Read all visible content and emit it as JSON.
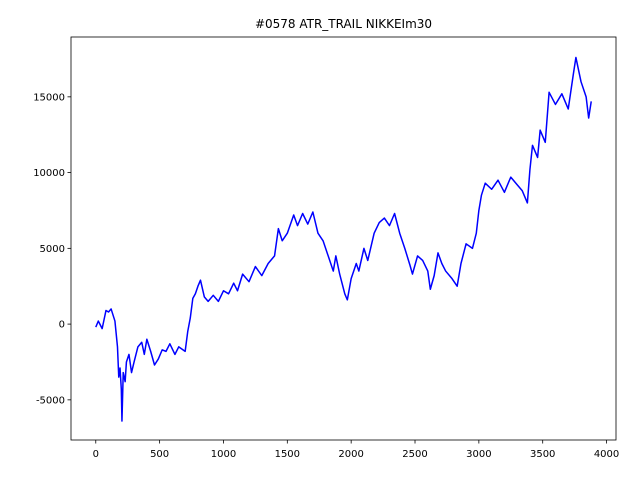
{
  "chart_data": {
    "type": "line",
    "title": "#0578 ATR_TRAIL NIKKEIm30",
    "x": [
      0,
      20,
      50,
      70,
      80,
      100,
      120,
      150,
      170,
      180,
      190,
      200,
      205,
      215,
      230,
      240,
      260,
      280,
      300,
      330,
      360,
      380,
      400,
      430,
      460,
      490,
      520,
      550,
      580,
      620,
      650,
      700,
      720,
      740,
      760,
      780,
      800,
      820,
      850,
      880,
      920,
      960,
      1000,
      1040,
      1080,
      1110,
      1150,
      1200,
      1250,
      1300,
      1350,
      1400,
      1430,
      1460,
      1500,
      1550,
      1580,
      1620,
      1660,
      1700,
      1740,
      1780,
      1820,
      1860,
      1880,
      1910,
      1950,
      1970,
      2000,
      2040,
      2060,
      2100,
      2130,
      2180,
      2220,
      2260,
      2300,
      2340,
      2380,
      2420,
      2460,
      2480,
      2520,
      2560,
      2600,
      2620,
      2650,
      2680,
      2710,
      2740,
      2790,
      2830,
      2860,
      2900,
      2950,
      2980,
      3000,
      3020,
      3050,
      3100,
      3150,
      3200,
      3250,
      3300,
      3340,
      3380,
      3400,
      3420,
      3460,
      3480,
      3520,
      3550,
      3600,
      3650,
      3700,
      3740,
      3760,
      3800,
      3840,
      3860,
      3880
    ],
    "series": [
      {
        "color": "#0000ff",
        "values": [
          -200,
          200,
          -300,
          500,
          900,
          800,
          1000,
          200,
          -1500,
          -3500,
          -2900,
          -4300,
          -6400,
          -3200,
          -3800,
          -2500,
          -2000,
          -3200,
          -2500,
          -1500,
          -1200,
          -2000,
          -1000,
          -1800,
          -2700,
          -2300,
          -1700,
          -1800,
          -1300,
          -2000,
          -1500,
          -1800,
          -500,
          400,
          1700,
          2000,
          2500,
          2900,
          1800,
          1500,
          1900,
          1500,
          2200,
          2000,
          2700,
          2200,
          3300,
          2800,
          3800,
          3200,
          4000,
          4500,
          6300,
          5500,
          6000,
          7200,
          6500,
          7300,
          6600,
          7400,
          6000,
          5500,
          4500,
          3500,
          4500,
          3300,
          2000,
          1600,
          3000,
          4000,
          3500,
          5000,
          4200,
          6000,
          6700,
          7000,
          6500,
          7300,
          6000,
          5000,
          3900,
          3300,
          4500,
          4200,
          3500,
          2300,
          3200,
          4700,
          4000,
          3500,
          3000,
          2500,
          4000,
          5300,
          5000,
          6000,
          7500,
          8500,
          9300,
          8900,
          9500,
          8700,
          9700,
          9200,
          8800,
          8000,
          10200,
          11800,
          11000,
          12800,
          12000,
          15300,
          14500,
          15200,
          14200,
          16500,
          17600,
          16000,
          15000,
          13600,
          14700
        ]
      }
    ],
    "xlim": [
      -194,
      4074
    ],
    "xticks": [
      0,
      500,
      1000,
      1500,
      2000,
      2500,
      3000,
      3500,
      4000
    ],
    "ylim": [
      -7650,
      18950
    ],
    "yticks": [
      -5000,
      0,
      5000,
      10000,
      15000
    ],
    "grid": false
  }
}
